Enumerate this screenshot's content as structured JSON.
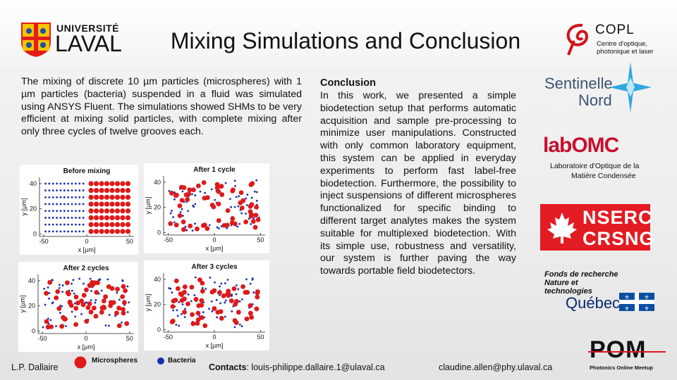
{
  "title": "Mixing Simulations and Conclusion",
  "logos": {
    "ulaval": {
      "line1": "UNIVERSITÉ",
      "line2": "LAVAL"
    },
    "copl": {
      "name": "COPL",
      "line1": "Centre d'optique,",
      "line2": "photonique et laser"
    },
    "sentinelle": {
      "line1": "Sentinelle",
      "line2": "Nord"
    },
    "lomc": {
      "name": "labOMC",
      "line1": "Laboratoire d'Optique de la",
      "line2": "Matière Condensée"
    },
    "nserc": {
      "line1": "NSERC",
      "line2": "CRSNG"
    },
    "frq": {
      "line1": "Fonds de recherche",
      "line2": "Nature et",
      "line3": "technologies",
      "line4": "Québec"
    },
    "pom": {
      "name": "POM",
      "sub": "Photonics Online Meetup"
    }
  },
  "intro_text": "The mixing of discrete 10 µm particles (microspheres) with 1 µm particles (bacteria) suspended in a fluid was simulated using ANSYS Fluent. The simulations showed SHMs to be very efficient at mixing solid particles, with complete mixing after only three cycles of twelve grooves each.",
  "conclusion": {
    "heading": "Conclusion",
    "body": "In this work, we presented a simple biodetection setup that performs automatic acquisition and sample pre-processing to minimize user manipulations. Constructed with only common laboratory equipment, this system can be applied in everyday experiments to perform fast label-free biodetection. Furthermore, the possibility to inject suspensions of different microspheres functionalized for specific binding to different target analytes makes the system suitable for multiplexed biodetection. With its simple use, robustness and versatility, our system is further paving the way towards portable field biodetectors."
  },
  "legend": {
    "microspheres": "Microspheres",
    "bacteria": "Bacteria",
    "microspheres_color": "#dd1a1a",
    "bacteria_color": "#1a2fb0"
  },
  "chart_data": [
    {
      "type": "scatter",
      "title": "Before mixing",
      "xlabel": "x [µm]",
      "ylabel": "y [µm]",
      "xlim": [
        -55,
        55
      ],
      "ylim": [
        -2,
        45
      ],
      "xticks": [
        -50,
        0,
        50
      ],
      "yticks": [
        0,
        20,
        40
      ],
      "series": [
        {
          "name": "Bacteria",
          "layout": "grid",
          "x": [
            -48,
            -4
          ],
          "y": [
            2,
            40
          ],
          "cols": 11,
          "rows": 8
        },
        {
          "name": "Microspheres",
          "layout": "grid",
          "x": [
            5,
            48
          ],
          "y": [
            2,
            40
          ],
          "cols": 8,
          "rows": 8
        }
      ]
    },
    {
      "type": "scatter",
      "title": "After 1 cycle",
      "xlabel": "x [µm]",
      "ylabel": "y [µm]",
      "xlim": [
        -55,
        55
      ],
      "ylim": [
        -2,
        45
      ],
      "xticks": [
        -50,
        0,
        50
      ],
      "yticks": [
        0,
        20,
        40
      ],
      "series": [
        {
          "name": "Bacteria",
          "count": 70
        },
        {
          "name": "Microspheres",
          "count": 60
        }
      ]
    },
    {
      "type": "scatter",
      "title": "After 2 cycles",
      "xlabel": "x [µm]",
      "ylabel": "y [µm]",
      "xlim": [
        -55,
        55
      ],
      "ylim": [
        -2,
        45
      ],
      "xticks": [
        -50,
        0,
        50
      ],
      "yticks": [
        0,
        20,
        40
      ],
      "series": [
        {
          "name": "Bacteria",
          "count": 70
        },
        {
          "name": "Microspheres",
          "count": 60
        }
      ]
    },
    {
      "type": "scatter",
      "title": "After 3 cycles",
      "xlabel": "x [µm]",
      "ylabel": "y [µm]",
      "xlim": [
        -55,
        55
      ],
      "ylim": [
        -2,
        45
      ],
      "xticks": [
        -50,
        0,
        50
      ],
      "yticks": [
        0,
        20,
        40
      ],
      "series": [
        {
          "name": "Bacteria",
          "count": 70
        },
        {
          "name": "Microspheres",
          "count": 60
        }
      ]
    }
  ],
  "footer": {
    "author": "L.P. Dallaire",
    "contacts_label": "Contacts",
    "email1": ": louis-philippe.dallaire.1@ulaval.ca",
    "email2": "claudine.allen@phy.ulaval.ca"
  }
}
